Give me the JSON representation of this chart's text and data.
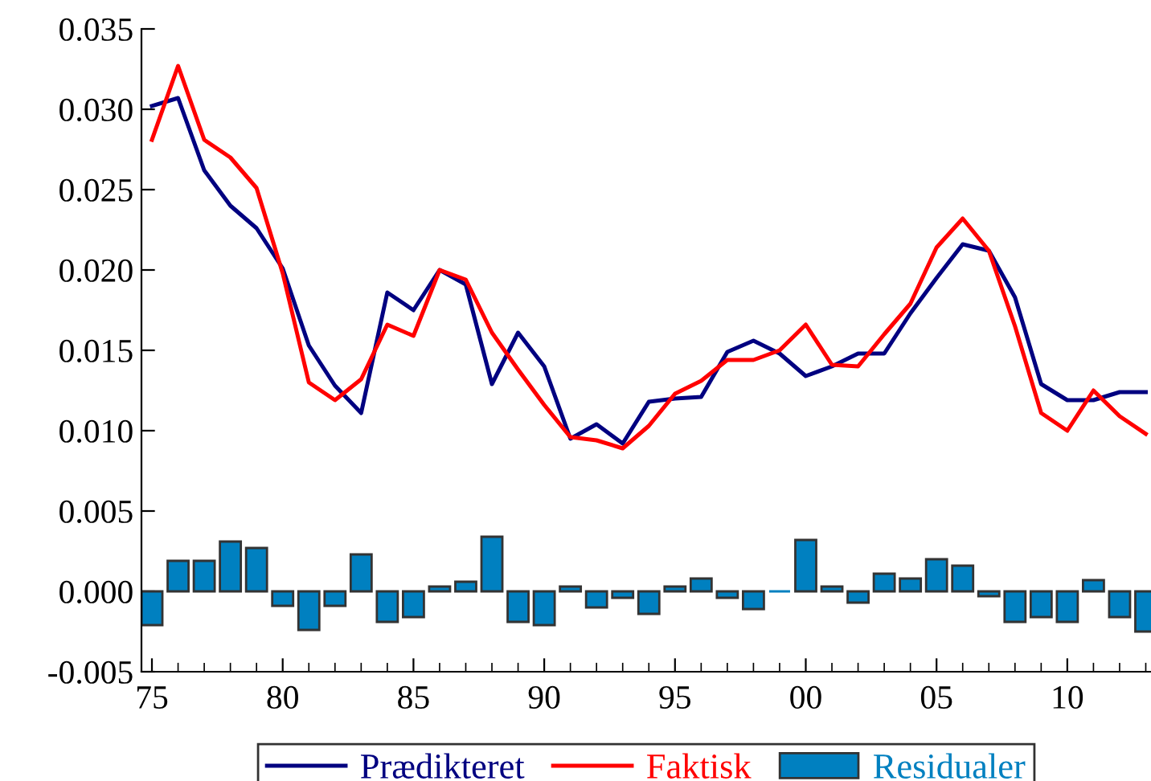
{
  "chart_data": {
    "type": "line",
    "x": [
      1975,
      1976,
      1977,
      1978,
      1979,
      1980,
      1981,
      1982,
      1983,
      1984,
      1985,
      1986,
      1987,
      1988,
      1989,
      1990,
      1991,
      1992,
      1993,
      1994,
      1995,
      1996,
      1997,
      1998,
      1999,
      2000,
      2001,
      2002,
      2003,
      2004,
      2005,
      2006,
      2007,
      2008,
      2009,
      2010,
      2011,
      2012,
      2013
    ],
    "series": [
      {
        "name": "Prædikteret",
        "color": "#000080",
        "values": [
          0.0302,
          0.0307,
          0.0262,
          0.024,
          0.0226,
          0.0201,
          0.0153,
          0.0128,
          0.0111,
          0.0186,
          0.0175,
          0.02,
          0.0191,
          0.0129,
          0.0161,
          0.014,
          0.0095,
          0.0104,
          0.0092,
          0.0118,
          0.012,
          0.0121,
          0.0149,
          0.0156,
          0.0148,
          0.0134,
          0.014,
          0.0148,
          0.0148,
          0.0173,
          0.0195,
          0.0216,
          0.0212,
          0.0183,
          0.0129,
          0.0119,
          0.0119,
          0.0124,
          0.0124
        ]
      },
      {
        "name": "Faktisk",
        "color": "#ff0000",
        "values": [
          0.0281,
          0.0327,
          0.0281,
          0.027,
          0.0251,
          0.0198,
          0.013,
          0.0119,
          0.0132,
          0.0166,
          0.0159,
          0.02,
          0.0194,
          0.0161,
          0.0138,
          0.0116,
          0.0096,
          0.0094,
          0.0089,
          0.0103,
          0.0123,
          0.0131,
          0.0144,
          0.0144,
          0.015,
          0.0166,
          0.0141,
          0.014,
          0.016,
          0.0179,
          0.0214,
          0.0232,
          0.0212,
          0.0165,
          0.0111,
          0.01,
          0.0125,
          0.0109,
          0.0098
        ]
      },
      {
        "name": "Residualer",
        "type": "bar",
        "color": "#0080c0",
        "values": [
          -0.0021,
          0.0019,
          0.0019,
          0.0031,
          0.0027,
          -0.0009,
          -0.0024,
          -0.0009,
          0.0023,
          -0.0019,
          -0.0016,
          0.0003,
          0.0006,
          0.0034,
          -0.0019,
          -0.0021,
          0.0003,
          -0.001,
          -0.0004,
          -0.0014,
          0.0003,
          0.0008,
          -0.0004,
          -0.0011,
          0.0,
          0.0032,
          0.0003,
          -0.0007,
          0.0011,
          0.0008,
          0.002,
          0.0016,
          -0.0003,
          -0.0019,
          -0.0016,
          -0.0019,
          0.0007,
          -0.0016,
          -0.0025
        ]
      }
    ],
    "xlim": [
      1974.6,
      2013.2
    ],
    "xticks": [
      {
        "value": 1975,
        "label": "75"
      },
      {
        "value": 1980,
        "label": "80"
      },
      {
        "value": 1985,
        "label": "85"
      },
      {
        "value": 1990,
        "label": "90"
      },
      {
        "value": 1995,
        "label": "95"
      },
      {
        "value": 2000,
        "label": "00"
      },
      {
        "value": 2005,
        "label": "05"
      },
      {
        "value": 2010,
        "label": "10"
      }
    ],
    "ylim": [
      -0.005,
      0.035
    ],
    "yticks": [
      {
        "value": -0.005,
        "label": "-0.005"
      },
      {
        "value": 0.0,
        "label": "0.000"
      },
      {
        "value": 0.005,
        "label": "0.005"
      },
      {
        "value": 0.01,
        "label": "0.010"
      },
      {
        "value": 0.015,
        "label": "0.015"
      },
      {
        "value": 0.02,
        "label": "0.020"
      },
      {
        "value": 0.025,
        "label": "0.025"
      },
      {
        "value": 0.03,
        "label": "0.030"
      },
      {
        "value": 0.035,
        "label": "0.035"
      }
    ],
    "grid": false,
    "legend": "bottom"
  }
}
